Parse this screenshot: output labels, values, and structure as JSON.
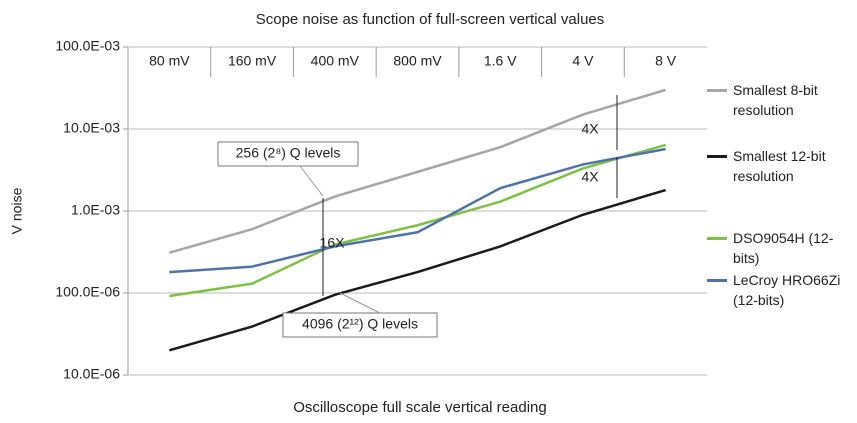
{
  "chart_data": {
    "type": "line",
    "title": "Scope noise as function of full-screen vertical values",
    "xlabel": "Oscilloscope full scale vertical reading",
    "ylabel": "V noise",
    "categories": [
      "80 mV",
      "160 mV",
      "400 mV",
      "800 mV",
      "1.6 V",
      "4 V",
      "8 V"
    ],
    "series": [
      {
        "name": "Smallest 8-bit resolution",
        "color": "#a6a6a6",
        "values": [
          0.00031,
          0.0006,
          0.0015,
          0.003,
          0.006,
          0.015,
          0.03
        ]
      },
      {
        "name": "Smallest 12-bit resolution",
        "color": "#1a1a1a",
        "values": [
          2e-05,
          3.9e-05,
          9.5e-05,
          0.00018,
          0.00037,
          0.0009,
          0.0018
        ]
      },
      {
        "name": "DSO9054H (12-bits)",
        "color": "#7dc242",
        "values": [
          9.2e-05,
          0.00013,
          0.00039,
          0.00067,
          0.0013,
          0.0033,
          0.0064
        ]
      },
      {
        "name": "LeCroy HRO66Zi (12-bits)",
        "color": "#4f72a8",
        "values": [
          0.00018,
          0.00021,
          0.00037,
          0.00055,
          0.0019,
          0.0037,
          0.0057
        ]
      }
    ],
    "log_y": true,
    "ylim": [
      1e-05,
      0.1
    ],
    "yticks": [
      {
        "value": 1e-05,
        "label": "10.0E-06"
      },
      {
        "value": 0.0001,
        "label": "100.0E-06"
      },
      {
        "value": 0.001,
        "label": "1.0E-03"
      },
      {
        "value": 0.01,
        "label": "10.0E-03"
      },
      {
        "value": 0.1,
        "label": "100.0E-03"
      }
    ],
    "grid": true,
    "legend": "right",
    "annotations": [
      "256 (2⁸) Q levels",
      "4096 (2¹²) Q levels",
      "16X",
      "4X",
      "4X"
    ]
  }
}
